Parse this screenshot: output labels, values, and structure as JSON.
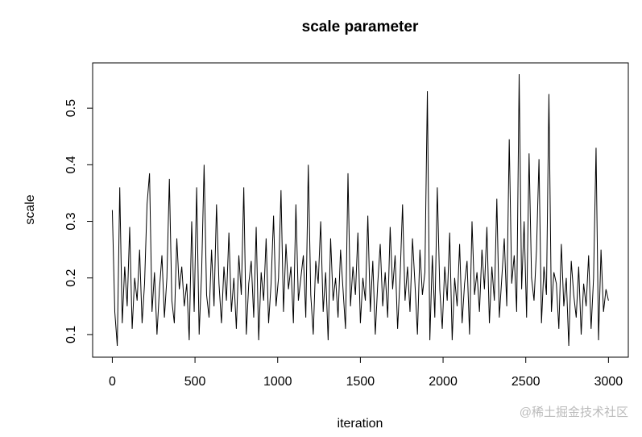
{
  "chart_data": {
    "type": "line",
    "title": "scale parameter",
    "x_label": "iteration",
    "y_label": "scale",
    "watermark": "@稀土掘金技术社区",
    "xlim": [
      -119,
      3120
    ],
    "ylim": [
      0.06,
      0.58
    ],
    "xticks": [
      0,
      500,
      1000,
      1500,
      2000,
      2500,
      3000
    ],
    "yticks": [
      0.1,
      0.2,
      0.3,
      0.4,
      0.5
    ],
    "x": [
      0,
      15,
      30,
      45,
      60,
      75,
      90,
      105,
      120,
      135,
      150,
      165,
      180,
      195,
      210,
      225,
      240,
      255,
      270,
      285,
      300,
      315,
      330,
      345,
      360,
      375,
      390,
      405,
      420,
      435,
      450,
      465,
      480,
      495,
      510,
      525,
      540,
      555,
      570,
      585,
      600,
      615,
      630,
      645,
      660,
      675,
      690,
      705,
      720,
      735,
      750,
      765,
      780,
      795,
      810,
      825,
      840,
      855,
      870,
      885,
      900,
      915,
      930,
      945,
      960,
      975,
      990,
      1005,
      1020,
      1035,
      1050,
      1065,
      1080,
      1095,
      1110,
      1125,
      1140,
      1155,
      1170,
      1185,
      1200,
      1215,
      1230,
      1245,
      1260,
      1275,
      1290,
      1305,
      1320,
      1335,
      1350,
      1365,
      1380,
      1395,
      1410,
      1425,
      1440,
      1455,
      1470,
      1485,
      1500,
      1515,
      1530,
      1545,
      1560,
      1575,
      1590,
      1605,
      1620,
      1635,
      1650,
      1665,
      1680,
      1695,
      1710,
      1725,
      1740,
      1755,
      1770,
      1785,
      1800,
      1815,
      1830,
      1845,
      1860,
      1875,
      1890,
      1905,
      1920,
      1935,
      1950,
      1965,
      1980,
      1995,
      2010,
      2025,
      2040,
      2055,
      2070,
      2085,
      2100,
      2115,
      2130,
      2145,
      2160,
      2175,
      2190,
      2205,
      2220,
      2235,
      2250,
      2265,
      2280,
      2295,
      2310,
      2325,
      2340,
      2355,
      2370,
      2385,
      2400,
      2415,
      2430,
      2445,
      2460,
      2475,
      2490,
      2505,
      2520,
      2535,
      2550,
      2565,
      2580,
      2595,
      2610,
      2625,
      2640,
      2655,
      2670,
      2685,
      2700,
      2715,
      2730,
      2745,
      2760,
      2775,
      2790,
      2805,
      2820,
      2835,
      2850,
      2865,
      2880,
      2895,
      2910,
      2925,
      2940,
      2955,
      2970,
      2985,
      3000
    ],
    "series": [
      {
        "color": "#000000",
        "values": [
          0.32,
          0.14,
          0.08,
          0.36,
          0.12,
          0.22,
          0.15,
          0.29,
          0.11,
          0.2,
          0.16,
          0.25,
          0.12,
          0.19,
          0.33,
          0.385,
          0.14,
          0.21,
          0.1,
          0.18,
          0.24,
          0.13,
          0.2,
          0.375,
          0.16,
          0.12,
          0.27,
          0.18,
          0.22,
          0.15,
          0.19,
          0.09,
          0.3,
          0.14,
          0.36,
          0.1,
          0.21,
          0.4,
          0.17,
          0.13,
          0.25,
          0.15,
          0.33,
          0.19,
          0.12,
          0.22,
          0.16,
          0.28,
          0.14,
          0.2,
          0.11,
          0.24,
          0.17,
          0.36,
          0.1,
          0.19,
          0.23,
          0.13,
          0.29,
          0.09,
          0.21,
          0.16,
          0.27,
          0.12,
          0.19,
          0.31,
          0.15,
          0.2,
          0.355,
          0.14,
          0.26,
          0.18,
          0.22,
          0.12,
          0.33,
          0.16,
          0.2,
          0.24,
          0.13,
          0.4,
          0.17,
          0.1,
          0.23,
          0.19,
          0.3,
          0.14,
          0.21,
          0.09,
          0.27,
          0.16,
          0.2,
          0.13,
          0.25,
          0.18,
          0.11,
          0.385,
          0.15,
          0.22,
          0.17,
          0.28,
          0.12,
          0.2,
          0.16,
          0.31,
          0.14,
          0.23,
          0.1,
          0.19,
          0.26,
          0.15,
          0.21,
          0.13,
          0.29,
          0.18,
          0.24,
          0.11,
          0.2,
          0.33,
          0.16,
          0.22,
          0.14,
          0.27,
          0.19,
          0.1,
          0.25,
          0.17,
          0.21,
          0.53,
          0.09,
          0.24,
          0.13,
          0.36,
          0.18,
          0.11,
          0.22,
          0.16,
          0.28,
          0.09,
          0.2,
          0.15,
          0.26,
          0.12,
          0.19,
          0.23,
          0.1,
          0.3,
          0.17,
          0.21,
          0.14,
          0.25,
          0.18,
          0.29,
          0.12,
          0.22,
          0.16,
          0.34,
          0.13,
          0.2,
          0.27,
          0.15,
          0.445,
          0.19,
          0.24,
          0.14,
          0.56,
          0.18,
          0.3,
          0.13,
          0.42,
          0.2,
          0.16,
          0.25,
          0.41,
          0.12,
          0.22,
          0.17,
          0.525,
          0.14,
          0.21,
          0.19,
          0.11,
          0.26,
          0.15,
          0.2,
          0.08,
          0.23,
          0.17,
          0.13,
          0.22,
          0.1,
          0.19,
          0.15,
          0.24,
          0.11,
          0.2,
          0.43,
          0.09,
          0.25,
          0.14,
          0.18,
          0.16
        ]
      }
    ]
  }
}
